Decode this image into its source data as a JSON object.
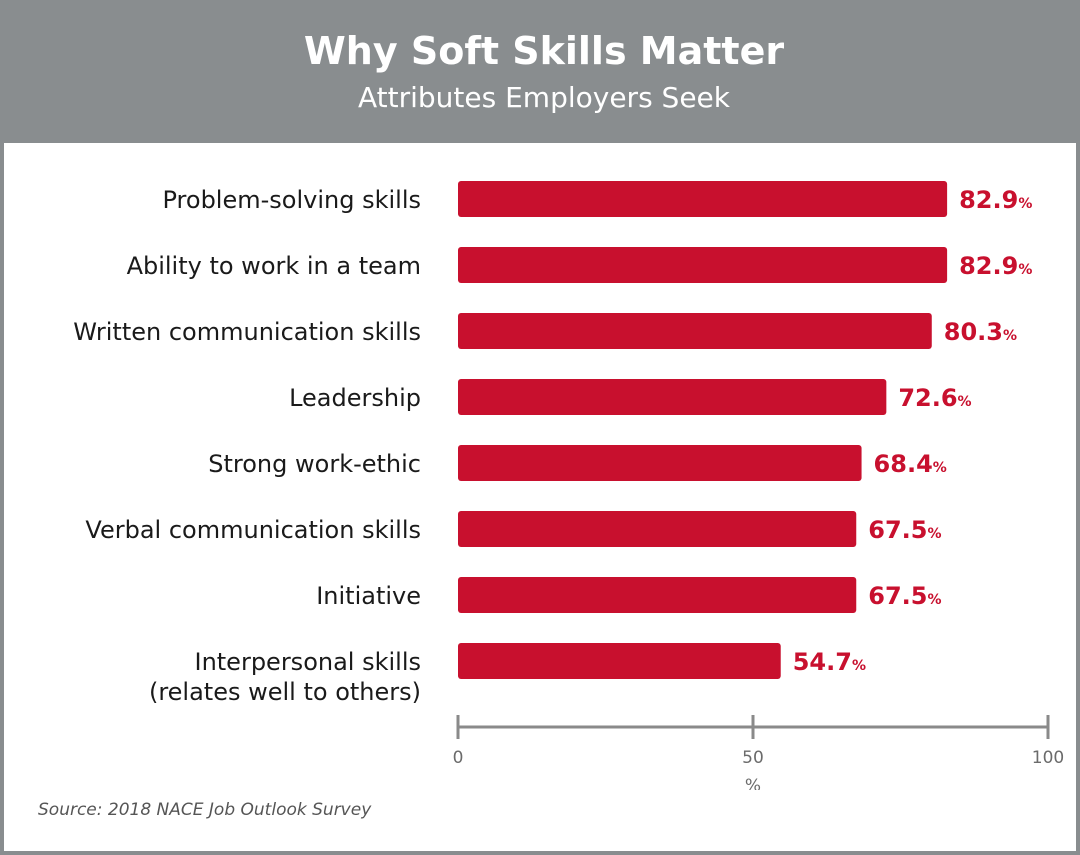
{
  "header": {
    "title": "Why Soft Skills Matter",
    "subtitle": "Attributes Employers Seek"
  },
  "source": "Source: 2018 NACE Job Outlook Survey",
  "colors": {
    "bar": "#c8102e",
    "header_bg": "#898d8f",
    "axis": "#8a8a8a"
  },
  "chart_data": {
    "type": "bar",
    "orientation": "horizontal",
    "categories": [
      [
        "Problem-solving skills"
      ],
      [
        "Ability to work in a team"
      ],
      [
        "Written communication skills"
      ],
      [
        "Leadership"
      ],
      [
        "Strong work-ethic"
      ],
      [
        "Verbal communication skills"
      ],
      [
        "Initiative"
      ],
      [
        "Interpersonal skills",
        "(relates well to others)"
      ]
    ],
    "values": [
      82.9,
      82.9,
      80.3,
      72.6,
      68.4,
      67.5,
      67.5,
      54.7
    ],
    "value_suffix": "%",
    "xlim": [
      0,
      100
    ],
    "xticks": [
      0,
      50,
      100
    ],
    "xlabel": "%",
    "grid": false
  }
}
